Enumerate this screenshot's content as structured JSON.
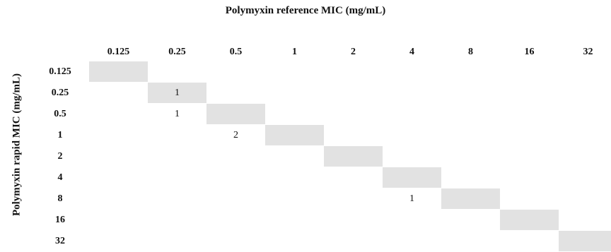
{
  "title": "Polymyxin reference MIC (mg/mL)",
  "ylabel": "Polymyxin rapid MIC (mg/mL)",
  "chart_data": {
    "type": "table",
    "title": "Polymyxin reference MIC (mg/mL)",
    "xlabel": "Polymyxin reference MIC (mg/mL)",
    "ylabel": "Polymyxin rapid MIC (mg/mL)",
    "columns": [
      "0.125",
      "0.25",
      "0.5",
      "1",
      "2",
      "4",
      "8",
      "16",
      "32"
    ],
    "rows": [
      "0.125",
      "0.25",
      "0.5",
      "1",
      "2",
      "4",
      "8",
      "16",
      "32"
    ],
    "cells": [
      [
        "",
        "",
        "",
        "",
        "",
        "",
        "",
        "",
        ""
      ],
      [
        "",
        "1",
        "",
        "",
        "",
        "",
        "",
        "",
        ""
      ],
      [
        "",
        "1",
        "",
        "",
        "",
        "",
        "",
        "",
        ""
      ],
      [
        "",
        "",
        "2",
        "",
        "",
        "",
        "",
        "",
        ""
      ],
      [
        "",
        "",
        "",
        "",
        "",
        "",
        "",
        "",
        ""
      ],
      [
        "",
        "",
        "",
        "",
        "",
        "",
        "",
        "",
        ""
      ],
      [
        "",
        "",
        "",
        "",
        "",
        "1",
        "",
        "",
        ""
      ],
      [
        "",
        "",
        "",
        "",
        "",
        "",
        "",
        "",
        ""
      ],
      [
        "",
        "",
        "",
        "",
        "",
        "",
        "",
        "",
        ""
      ]
    ],
    "highlight": "diagonal",
    "highlight_color": "#e2e2e2"
  }
}
